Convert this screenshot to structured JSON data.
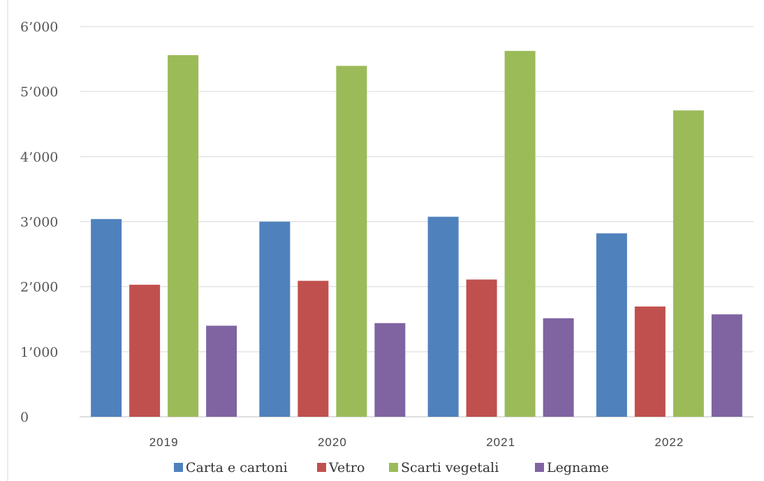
{
  "chart_data": {
    "type": "bar",
    "categories": [
      "2019",
      "2020",
      "2021",
      "2022"
    ],
    "series": [
      {
        "name": "Carta e cartoni",
        "color": "#4f81bd",
        "values": [
          3040,
          3000,
          3075,
          2820
        ]
      },
      {
        "name": "Vetro",
        "color": "#c0504d",
        "values": [
          2030,
          2090,
          2110,
          1695
        ]
      },
      {
        "name": "Scarti vegetali",
        "color": "#9bbb59",
        "values": [
          5560,
          5395,
          5625,
          4710
        ]
      },
      {
        "name": "Legname",
        "color": "#8064a2",
        "values": [
          1400,
          1440,
          1515,
          1575
        ]
      }
    ],
    "y_ticks": [
      "0",
      "1’000",
      "2’000",
      "3’000",
      "4’000",
      "5’000",
      "6’000"
    ],
    "ylim": [
      0,
      6000
    ],
    "grid": true,
    "legend_position": "bottom"
  }
}
